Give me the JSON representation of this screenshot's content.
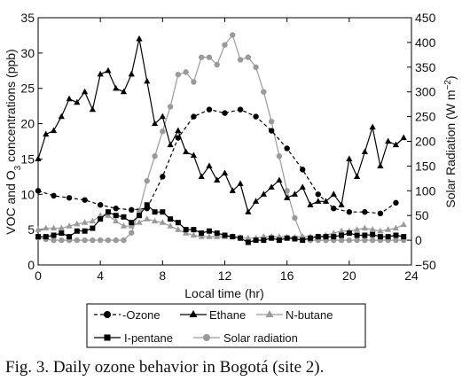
{
  "caption": "Fig. 3. Daily ozone behavior in Bogotá (site 2).",
  "chart_data": {
    "type": "line",
    "xlabel": "Local time (hr)",
    "ylabel_left_pre": "VOC and O",
    "ylabel_left_sub": "3",
    "ylabel_left_post": " concentrations (ppb)",
    "ylabel_right_pre": "Solar Radiation (W m",
    "ylabel_right_sup": "−2",
    "ylabel_right_post": ")",
    "xlim": [
      0,
      24
    ],
    "ylim_left": [
      0,
      35
    ],
    "ylim_right": [
      -50,
      450
    ],
    "x_ticks": [
      "0",
      "4",
      "8",
      "12",
      "16",
      "20",
      "24"
    ],
    "y_left_ticks": [
      "0",
      "5",
      "10",
      "15",
      "20",
      "25",
      "30",
      "35"
    ],
    "y_right_ticks": [
      "−50",
      "0",
      "50",
      "100",
      "150",
      "200",
      "250",
      "300",
      "350",
      "400",
      "450"
    ],
    "legend_position": "bottom",
    "series": [
      {
        "name": "Ozone",
        "legend_label": "-Ozone",
        "axis": "left",
        "color": "#000000",
        "dash": "dashed",
        "marker": "circle",
        "x": [
          0,
          1,
          2,
          3,
          4,
          5,
          6,
          7,
          8,
          9,
          10,
          11,
          12,
          13,
          14,
          15,
          16,
          17,
          18,
          19,
          20,
          21,
          22,
          23
        ],
        "y": [
          10.5,
          9.8,
          9.5,
          9.2,
          8.5,
          8.0,
          7.8,
          8.0,
          12.5,
          18.0,
          21.0,
          22.0,
          21.5,
          22.0,
          21.0,
          19.0,
          16.5,
          13.5,
          10.0,
          8.0,
          7.5,
          7.5,
          7.3,
          8.8
        ]
      },
      {
        "name": "Ethane",
        "legend_label": "Ethane",
        "axis": "left",
        "color": "#000000",
        "dash": "solid",
        "marker": "triangle",
        "x": [
          0,
          0.5,
          1,
          1.5,
          2,
          2.5,
          3,
          3.5,
          4,
          4.5,
          5,
          5.5,
          6,
          6.5,
          7,
          7.5,
          8,
          8.5,
          9,
          9.5,
          10,
          10.5,
          11,
          11.5,
          12,
          12.5,
          13,
          13.5,
          14,
          14.5,
          15,
          15.5,
          16,
          16.5,
          17,
          17.5,
          18,
          18.5,
          19,
          19.5,
          20,
          20.5,
          21,
          21.5,
          22,
          22.5,
          23,
          23.5
        ],
        "y": [
          15,
          18.5,
          19,
          21,
          23.5,
          23,
          24.5,
          22,
          27,
          27.5,
          25,
          24.5,
          27,
          32,
          26,
          20,
          21,
          17,
          19,
          16,
          15.5,
          12.5,
          14,
          12,
          13,
          10.5,
          11.5,
          7.5,
          9,
          10,
          11,
          12,
          9.5,
          10,
          11,
          8.5,
          9,
          9,
          10,
          8.5,
          15,
          12.5,
          16,
          19.5,
          14,
          17.5,
          17,
          18
        ]
      },
      {
        "name": "N-butane",
        "legend_label": "N-butane",
        "axis": "left",
        "color": "#9a9a9a",
        "dash": "solid",
        "marker": "triangle",
        "x": [
          0,
          0.5,
          1,
          1.5,
          2,
          2.5,
          3,
          3.5,
          4,
          4.5,
          5,
          5.5,
          6,
          6.5,
          7,
          7.5,
          8,
          8.5,
          9,
          9.5,
          10,
          10.5,
          11,
          11.5,
          12,
          12.5,
          13,
          13.5,
          14,
          14.5,
          15,
          15.5,
          16,
          16.5,
          17,
          17.5,
          18,
          18.5,
          19,
          19.5,
          20,
          20.5,
          21,
          21.5,
          22,
          22.5,
          23,
          23.5
        ],
        "y": [
          5,
          5.2,
          5.2,
          5.2,
          5.5,
          5.8,
          6.0,
          6.2,
          7.0,
          7.0,
          6.2,
          5.5,
          5.5,
          6.0,
          6.5,
          6.2,
          6.0,
          5.5,
          5.0,
          4.5,
          4.2,
          4.0,
          4.0,
          4.0,
          4.0,
          4.0,
          3.9,
          3.8,
          3.8,
          4.0,
          4.0,
          4.0,
          3.9,
          3.9,
          4.0,
          4.0,
          4.0,
          4.2,
          4.5,
          4.8,
          4.8,
          5.0,
          5.2,
          5.0,
          4.8,
          5.0,
          5.2,
          5.7
        ]
      },
      {
        "name": "I-pentane",
        "legend_label": "I-pentane",
        "axis": "left",
        "color": "#000000",
        "dash": "solid",
        "marker": "square",
        "x": [
          0,
          0.5,
          1,
          1.5,
          2,
          2.5,
          3,
          3.5,
          4,
          4.5,
          5,
          5.5,
          6,
          6.5,
          7,
          7.5,
          8,
          8.5,
          9,
          9.5,
          10,
          10.5,
          11,
          11.5,
          12,
          12.5,
          13,
          13.5,
          14,
          14.5,
          15,
          15.5,
          16,
          16.5,
          17,
          17.5,
          18,
          18.5,
          19,
          19.5,
          20,
          20.5,
          21,
          21.5,
          22,
          22.5,
          23,
          23.5
        ],
        "y": [
          4.0,
          4.0,
          4.2,
          4.5,
          4.0,
          4.8,
          4.8,
          5.2,
          6.5,
          7.5,
          7.0,
          6.8,
          6.0,
          7.0,
          8.5,
          7.5,
          7.5,
          6.5,
          6.0,
          5.0,
          5.0,
          4.5,
          4.8,
          4.5,
          4.2,
          4.0,
          3.8,
          3.2,
          3.5,
          3.5,
          3.8,
          3.5,
          3.8,
          3.7,
          3.5,
          3.8,
          4.0,
          4.0,
          4.0,
          4.2,
          4.5,
          4.2,
          4.2,
          4.3,
          4.0,
          4.0,
          4.2,
          4.0
        ]
      },
      {
        "name": "Solar radiation",
        "legend_label": "Solar radiation",
        "axis": "right",
        "color": "#9a9a9a",
        "dash": "solid",
        "marker": "circle",
        "x": [
          0,
          0.5,
          1,
          1.5,
          2,
          2.5,
          3,
          3.5,
          4,
          4.5,
          5,
          5.5,
          6,
          6.5,
          7,
          7.5,
          8,
          8.5,
          9,
          9.5,
          10,
          10.5,
          11,
          11.5,
          12,
          12.5,
          13,
          13.5,
          14,
          14.5,
          15,
          15.5,
          16,
          16.5,
          17,
          17.5,
          18,
          18.5,
          19,
          19.5,
          20,
          20.5,
          21,
          21.5,
          22,
          22.5,
          23,
          23.5
        ],
        "y": [
          5,
          2,
          0,
          0,
          0,
          0,
          0,
          0,
          0,
          0,
          0,
          0,
          15,
          60,
          120,
          170,
          220,
          270,
          335,
          340,
          320,
          370,
          370,
          355,
          395,
          415,
          365,
          370,
          350,
          300,
          240,
          170,
          100,
          45,
          5,
          0,
          0,
          0,
          0,
          0,
          0,
          0,
          0,
          0,
          0,
          0,
          0,
          0
        ]
      }
    ]
  }
}
